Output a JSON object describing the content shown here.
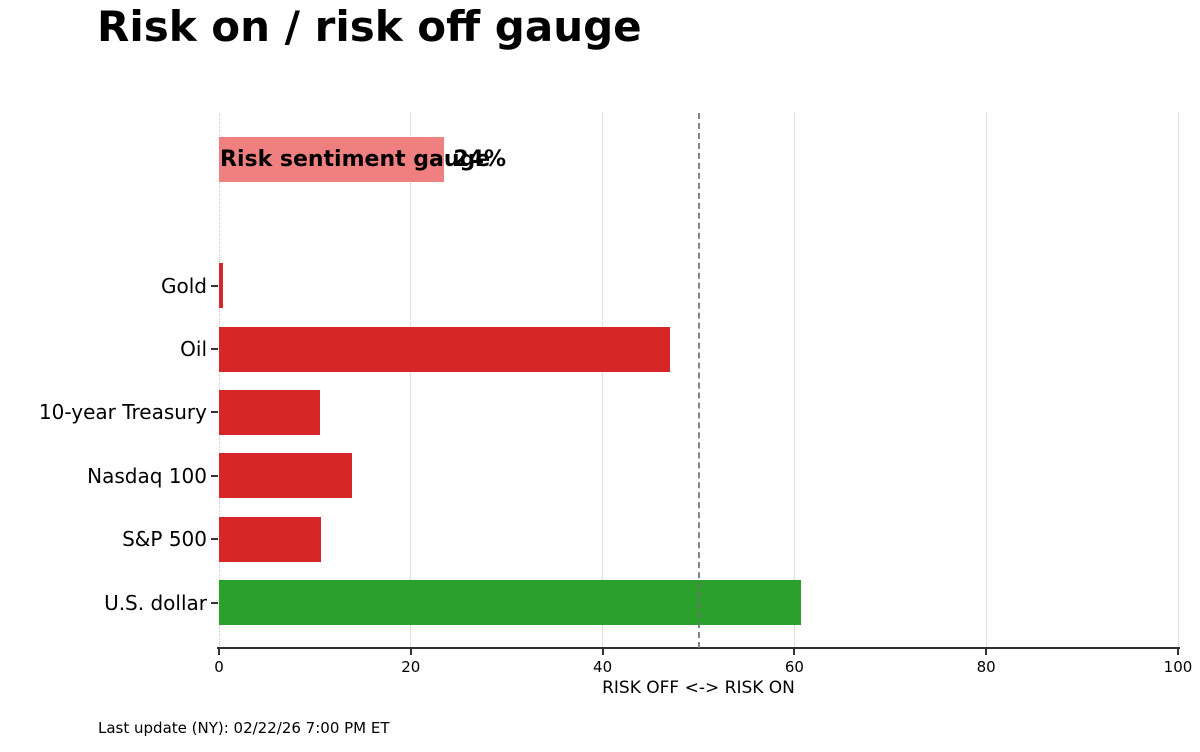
{
  "title": "Risk on / risk off gauge",
  "footer": "Last update (NY): 02/22/26 7:00 PM ET",
  "chart_data": {
    "type": "bar",
    "orientation": "horizontal",
    "title": "Risk on / risk off gauge",
    "xlabel": "RISK OFF <-> RISK ON",
    "xlim": [
      0,
      100
    ],
    "xticks": [
      0,
      20,
      40,
      60,
      80,
      100
    ],
    "grid": "vertical dotted gridlines at xticks",
    "legend": "none",
    "reference_line": {
      "x": 50,
      "style": "dashed",
      "color": "#6e6e6e"
    },
    "gauge": {
      "label": "Risk sentiment gauge",
      "value": 23.5,
      "display_value": "24%",
      "color": "#f08080"
    },
    "categories": [
      "Gold",
      "Oil",
      "10-year Treasury",
      "Nasdaq 100",
      "S&P 500",
      "U.S. dollar"
    ],
    "values": [
      0.4,
      47,
      10.5,
      13.9,
      10.6,
      60.7
    ],
    "bar_colors": [
      "#d62728",
      "#d62728",
      "#d62728",
      "#d62728",
      "#d62728",
      "#2ca02c"
    ],
    "colors": {
      "risk_off_red": "#d62728",
      "risk_on_green": "#2ca02c",
      "gauge_pink": "#f08080",
      "gridline": "#c9c9c9",
      "axis": "#2e2e2e"
    }
  }
}
